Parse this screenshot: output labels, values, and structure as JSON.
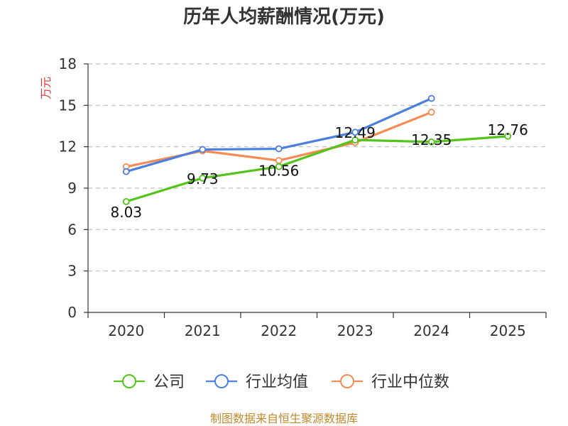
{
  "chart_data": {
    "type": "line",
    "title": "历年人均薪酬情况(万元)",
    "ylabel": "万元",
    "categories": [
      "2020",
      "2021",
      "2022",
      "2023",
      "2024",
      "2025"
    ],
    "ylim": [
      0,
      18
    ],
    "yticks": [
      0,
      3,
      6,
      9,
      12,
      15,
      18
    ],
    "grid": true,
    "legend_position": "bottom",
    "series": [
      {
        "name": "公司",
        "color": "#52c41a",
        "values": [
          8.03,
          9.73,
          10.56,
          12.49,
          12.35,
          12.76
        ],
        "labels": [
          "8.03",
          "9.73",
          "10.56",
          "12.49",
          "12.35",
          "12.76"
        ]
      },
      {
        "name": "行业均值",
        "color": "#4a7fdc",
        "values": [
          10.2,
          11.8,
          11.85,
          13.05,
          15.5,
          null
        ]
      },
      {
        "name": "行业中位数",
        "color": "#f58b54",
        "values": [
          10.55,
          11.7,
          11.0,
          12.3,
          14.5,
          null
        ]
      }
    ]
  },
  "source_text": "制图数据来自恒生聚源数据库"
}
